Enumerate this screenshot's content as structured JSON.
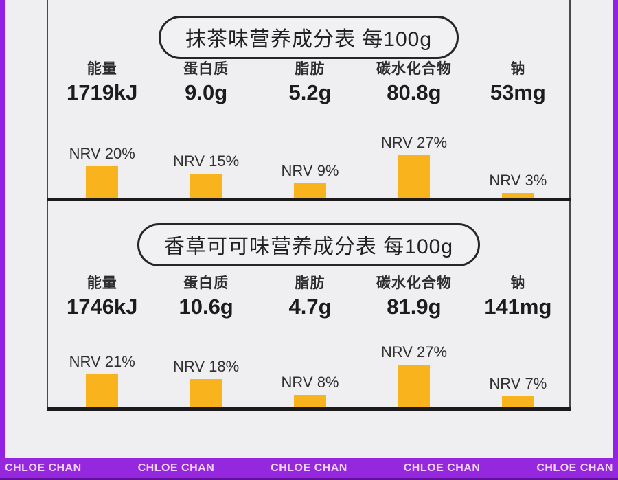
{
  "colors": {
    "background": "#efeef1",
    "bar": "#f8b31d",
    "frame_line": "#4a4a4a",
    "baseline": "#1b1b1b",
    "pill_border": "#262626",
    "edge_strip": "#9320e4",
    "banner_bg": "#9527de",
    "banner_edge": "#62109b",
    "banner_text": "#efd3f8"
  },
  "banner": {
    "watermarks": [
      "CHLOE CHAN",
      "CHLOE CHAN",
      "CHLOE CHAN",
      "CHLOE CHAN",
      "CHLOE CHAN"
    ]
  },
  "panels": [
    {
      "title": "抹茶味营养成分表 每100g",
      "nutrients": [
        {
          "name": "能量",
          "value": "1719kJ",
          "nrv_label": "NRV 20%",
          "nrv_pct": 20
        },
        {
          "name": "蛋白质",
          "value": "9.0g",
          "nrv_label": "NRV 15%",
          "nrv_pct": 15
        },
        {
          "name": "脂肪",
          "value": "5.2g",
          "nrv_label": "NRV 9%",
          "nrv_pct": 9
        },
        {
          "name": "碳水化合物",
          "value": "80.8g",
          "nrv_label": "NRV 27%",
          "nrv_pct": 27
        },
        {
          "name": "钠",
          "value": "53mg",
          "nrv_label": "NRV 3%",
          "nrv_pct": 3
        }
      ]
    },
    {
      "title": "香草可可味营养成分表 每100g",
      "nutrients": [
        {
          "name": "能量",
          "value": "1746kJ",
          "nrv_label": "NRV 21%",
          "nrv_pct": 21
        },
        {
          "name": "蛋白质",
          "value": "10.6g",
          "nrv_label": "NRV 18%",
          "nrv_pct": 18
        },
        {
          "name": "脂肪",
          "value": "4.7g",
          "nrv_label": "NRV 8%",
          "nrv_pct": 8
        },
        {
          "name": "碳水化合物",
          "value": "81.9g",
          "nrv_label": "NRV 27%",
          "nrv_pct": 27
        },
        {
          "name": "钠",
          "value": "141mg",
          "nrv_label": "NRV 7%",
          "nrv_pct": 7
        }
      ]
    }
  ],
  "chart_data": [
    {
      "type": "bar",
      "title": "抹茶味营养成分表 每100g",
      "categories": [
        "能量",
        "蛋白质",
        "脂肪",
        "碳水化合物",
        "钠"
      ],
      "amounts_per_100g": [
        "1719kJ",
        "9.0g",
        "5.2g",
        "80.8g",
        "53mg"
      ],
      "values": [
        20,
        15,
        9,
        27,
        3
      ],
      "series_label": "NRV %",
      "xlabel": "",
      "ylabel": "NRV %",
      "ylim": [
        0,
        30
      ],
      "grid": false,
      "legend": false
    },
    {
      "type": "bar",
      "title": "香草可可味营养成分表 每100g",
      "categories": [
        "能量",
        "蛋白质",
        "脂肪",
        "碳水化合物",
        "钠"
      ],
      "amounts_per_100g": [
        "1746kJ",
        "10.6g",
        "4.7g",
        "81.9g",
        "141mg"
      ],
      "values": [
        21,
        18,
        8,
        27,
        7
      ],
      "series_label": "NRV %",
      "xlabel": "",
      "ylabel": "NRV %",
      "ylim": [
        0,
        30
      ],
      "grid": false,
      "legend": false
    }
  ]
}
